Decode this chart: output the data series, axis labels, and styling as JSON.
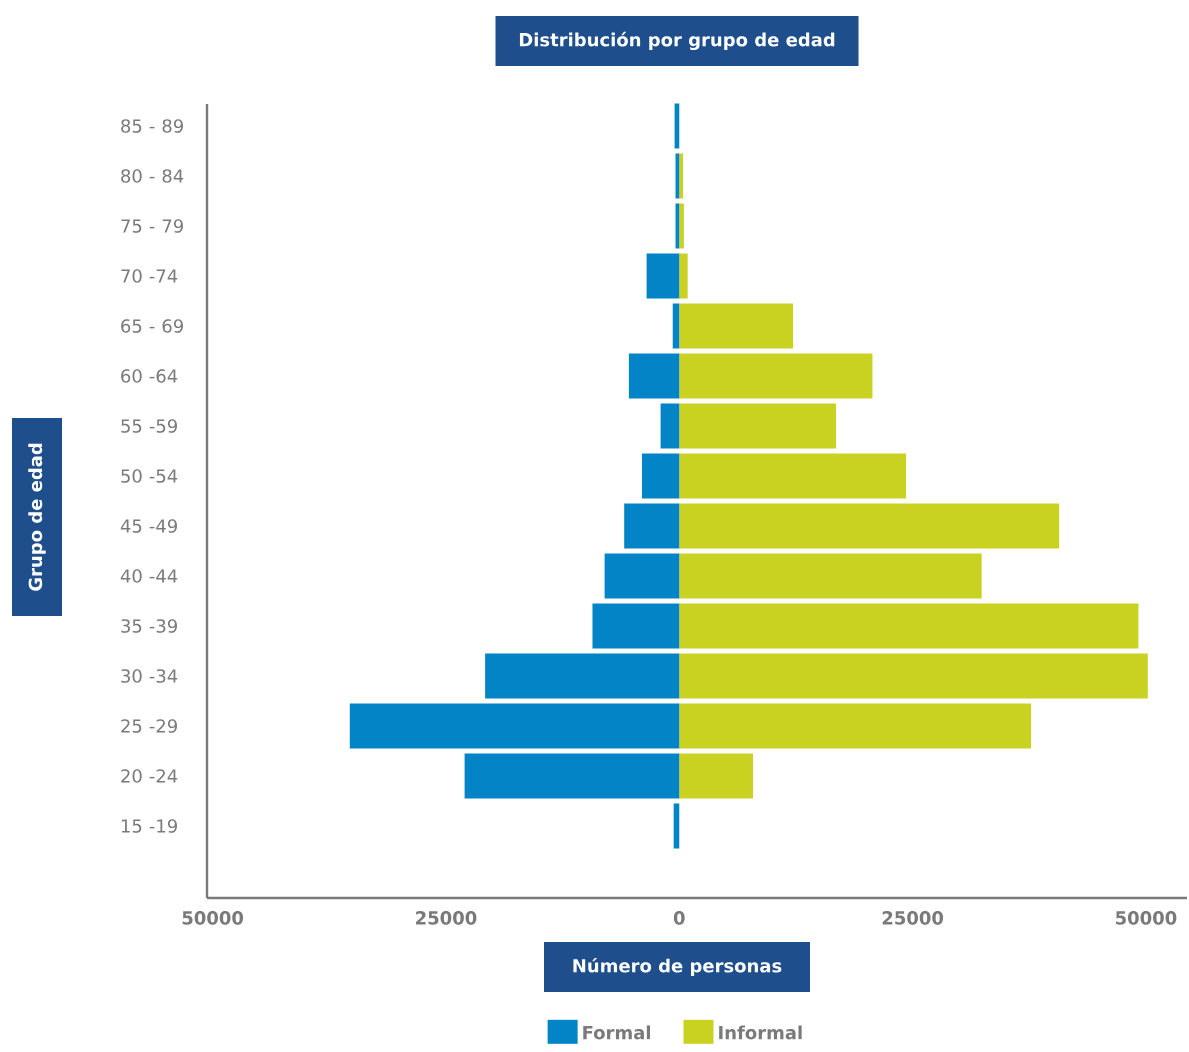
{
  "chart_data": {
    "type": "bar",
    "orientation": "horizontal",
    "title": "Distribución por grupo de edad",
    "xlabel": "Número de personas",
    "ylabel": "Grupo de edad",
    "categories": [
      "85 - 89",
      "80 - 84",
      "75 - 79",
      "70 -74",
      "65 - 69",
      "60 -64",
      "55 -59",
      "50 -54",
      "45 -49",
      "40 -44",
      "35 -39",
      "30 -34",
      "25 -29",
      "20 -24",
      "15 -19"
    ],
    "series": [
      {
        "name": "Formal",
        "color": "#0384c6",
        "values": [
          -500,
          -400,
          -400,
          -3500,
          -700,
          -5400,
          -2000,
          -4000,
          -5900,
          -8000,
          -9300,
          -20800,
          -35300,
          -23000,
          -600
        ]
      },
      {
        "name": "Informal",
        "color": "#c9d121",
        "values": [
          null,
          400,
          500,
          900,
          12200,
          20700,
          16800,
          24300,
          40700,
          32400,
          49200,
          50200,
          37700,
          7900,
          null
        ]
      }
    ],
    "xlim": [
      -50600,
      54400
    ],
    "xticks": [
      {
        "value": -50000,
        "label": "50000"
      },
      {
        "value": -25000,
        "label": "25000"
      },
      0,
      25000,
      50000
    ],
    "grid": false,
    "legend": "bottom",
    "stacked": true
  }
}
